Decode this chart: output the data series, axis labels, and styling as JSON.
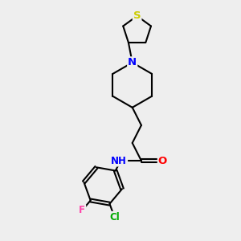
{
  "bg_color": "#eeeeee",
  "bond_color": "#000000",
  "bond_width": 1.5,
  "atom_colors": {
    "S": "#cccc00",
    "N": "#0000ff",
    "O": "#ff0000",
    "Cl": "#00aa00",
    "F": "#ff44aa",
    "C": "#000000",
    "H": "#555555"
  },
  "font_size": 8.5,
  "title": ""
}
